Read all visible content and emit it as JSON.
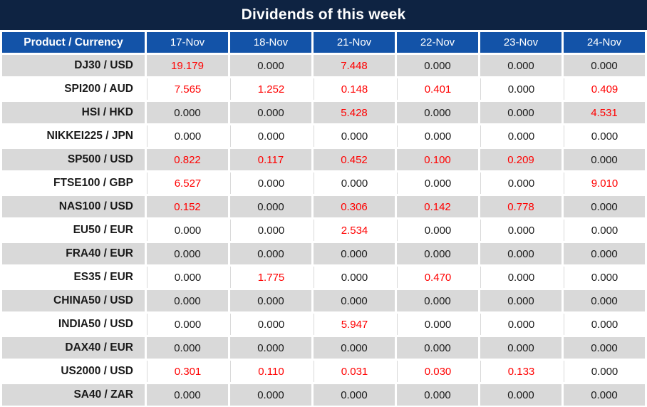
{
  "title": "Dividends of this week",
  "colors": {
    "title_bg": "#0e2342",
    "header_bg": "#1353a8",
    "row_alt_bg": "#d9d9d9",
    "row_bg": "#ffffff",
    "value_zero": "#1a1a1a",
    "value_nonzero": "#ff0000"
  },
  "header": {
    "product_label": "Product / Currency",
    "dates": [
      "17-Nov",
      "18-Nov",
      "21-Nov",
      "22-Nov",
      "23-Nov",
      "24-Nov"
    ]
  },
  "rows": [
    {
      "product": "DJ30 / USD",
      "values": [
        "19.179",
        "0.000",
        "7.448",
        "0.000",
        "0.000",
        "0.000"
      ]
    },
    {
      "product": "SPI200 / AUD",
      "values": [
        "7.565",
        "1.252",
        "0.148",
        "0.401",
        "0.000",
        "0.409"
      ]
    },
    {
      "product": "HSI / HKD",
      "values": [
        "0.000",
        "0.000",
        "5.428",
        "0.000",
        "0.000",
        "4.531"
      ]
    },
    {
      "product": "NIKKEI225 / JPN",
      "values": [
        "0.000",
        "0.000",
        "0.000",
        "0.000",
        "0.000",
        "0.000"
      ]
    },
    {
      "product": "SP500 / USD",
      "values": [
        "0.822",
        "0.117",
        "0.452",
        "0.100",
        "0.209",
        "0.000"
      ]
    },
    {
      "product": "FTSE100 / GBP",
      "values": [
        "6.527",
        "0.000",
        "0.000",
        "0.000",
        "0.000",
        "9.010"
      ]
    },
    {
      "product": "NAS100 / USD",
      "values": [
        "0.152",
        "0.000",
        "0.306",
        "0.142",
        "0.778",
        "0.000"
      ]
    },
    {
      "product": "EU50 / EUR",
      "values": [
        "0.000",
        "0.000",
        "2.534",
        "0.000",
        "0.000",
        "0.000"
      ]
    },
    {
      "product": "FRA40 / EUR",
      "values": [
        "0.000",
        "0.000",
        "0.000",
        "0.000",
        "0.000",
        "0.000"
      ]
    },
    {
      "product": "ES35 / EUR",
      "values": [
        "0.000",
        "1.775",
        "0.000",
        "0.470",
        "0.000",
        "0.000"
      ]
    },
    {
      "product": "CHINA50 / USD",
      "values": [
        "0.000",
        "0.000",
        "0.000",
        "0.000",
        "0.000",
        "0.000"
      ]
    },
    {
      "product": "INDIA50 / USD",
      "values": [
        "0.000",
        "0.000",
        "5.947",
        "0.000",
        "0.000",
        "0.000"
      ]
    },
    {
      "product": "DAX40 / EUR",
      "values": [
        "0.000",
        "0.000",
        "0.000",
        "0.000",
        "0.000",
        "0.000"
      ]
    },
    {
      "product": "US2000 / USD",
      "values": [
        "0.301",
        "0.110",
        "0.031",
        "0.030",
        "0.133",
        "0.000"
      ]
    },
    {
      "product": "SA40 / ZAR",
      "values": [
        "0.000",
        "0.000",
        "0.000",
        "0.000",
        "0.000",
        "0.000"
      ]
    }
  ],
  "chart_data": {
    "type": "table",
    "title": "Dividends of this week",
    "columns": [
      "Product / Currency",
      "17-Nov",
      "18-Nov",
      "21-Nov",
      "22-Nov",
      "23-Nov",
      "24-Nov"
    ],
    "rows": [
      [
        "DJ30 / USD",
        19.179,
        0.0,
        7.448,
        0.0,
        0.0,
        0.0
      ],
      [
        "SPI200 / AUD",
        7.565,
        1.252,
        0.148,
        0.401,
        0.0,
        0.409
      ],
      [
        "HSI / HKD",
        0.0,
        0.0,
        5.428,
        0.0,
        0.0,
        4.531
      ],
      [
        "NIKKEI225 / JPN",
        0.0,
        0.0,
        0.0,
        0.0,
        0.0,
        0.0
      ],
      [
        "SP500 / USD",
        0.822,
        0.117,
        0.452,
        0.1,
        0.209,
        0.0
      ],
      [
        "FTSE100 / GBP",
        6.527,
        0.0,
        0.0,
        0.0,
        0.0,
        9.01
      ],
      [
        "NAS100 / USD",
        0.152,
        0.0,
        0.306,
        0.142,
        0.778,
        0.0
      ],
      [
        "EU50 / EUR",
        0.0,
        0.0,
        2.534,
        0.0,
        0.0,
        0.0
      ],
      [
        "FRA40 / EUR",
        0.0,
        0.0,
        0.0,
        0.0,
        0.0,
        0.0
      ],
      [
        "ES35 / EUR",
        0.0,
        1.775,
        0.0,
        0.47,
        0.0,
        0.0
      ],
      [
        "CHINA50 / USD",
        0.0,
        0.0,
        0.0,
        0.0,
        0.0,
        0.0
      ],
      [
        "INDIA50 / USD",
        0.0,
        0.0,
        5.947,
        0.0,
        0.0,
        0.0
      ],
      [
        "DAX40 / EUR",
        0.0,
        0.0,
        0.0,
        0.0,
        0.0,
        0.0
      ],
      [
        "US2000 / USD",
        0.301,
        0.11,
        0.031,
        0.03,
        0.133,
        0.0
      ],
      [
        "SA40 / ZAR",
        0.0,
        0.0,
        0.0,
        0.0,
        0.0,
        0.0
      ]
    ],
    "notes": "Non-zero dividend values rendered in red (#ff0000); zeros in near-black; rows alternate gray/white striping."
  }
}
